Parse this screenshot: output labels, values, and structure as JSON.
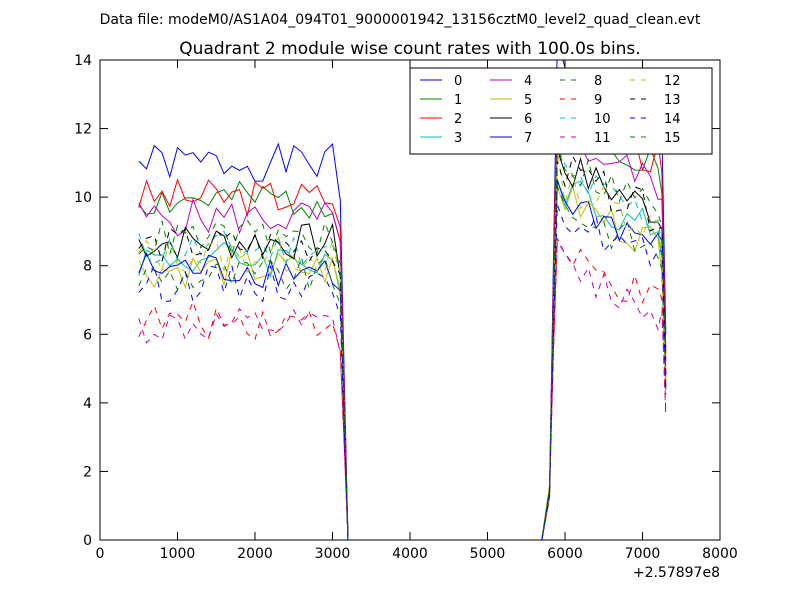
{
  "chart_data": {
    "type": "line",
    "suptitle": "Data file: modeM0/AS1A04_094T01_9000001942_13156cztM0_level2_quad_clean.evt",
    "title": "Quadrant 2 module wise count rates with 100.0s bins.",
    "xlabel": "",
    "ylabel": "",
    "x_offset_label": "+2.57897e8",
    "xlim": [
      0,
      8000
    ],
    "ylim": [
      0,
      14
    ],
    "xticks": [
      0,
      1000,
      2000,
      3000,
      4000,
      5000,
      6000,
      7000,
      8000
    ],
    "yticks": [
      0,
      2,
      4,
      6,
      8,
      10,
      12,
      14
    ],
    "xtick_labels": [
      "0",
      "1000",
      "2000",
      "3000",
      "4000",
      "5000",
      "6000",
      "7000",
      "8000"
    ],
    "ytick_labels": [
      "0",
      "2",
      "4",
      "6",
      "8",
      "10",
      "12",
      "14"
    ],
    "grid": false,
    "legend_position": "upper-right",
    "legend_columns": 4,
    "x": [
      500,
      600,
      700,
      800,
      900,
      1000,
      1100,
      1200,
      1300,
      1400,
      1500,
      1600,
      1700,
      1800,
      1900,
      2000,
      2100,
      2200,
      2300,
      2400,
      2500,
      2600,
      2700,
      2800,
      2900,
      3000,
      3100,
      3150,
      3200,
      3300,
      3500,
      4000,
      4500,
      5000,
      5500,
      5700,
      5800,
      5850,
      5900,
      6000,
      6100,
      6200,
      6300,
      6400,
      6500,
      6600,
      6700,
      6800,
      6900,
      7000,
      7100,
      7200,
      7250,
      7300
    ],
    "series": [
      {
        "name": "0",
        "color": "#0000ff",
        "dash": "solid",
        "level": 11.0,
        "seed": 1
      },
      {
        "name": "1",
        "color": "#008000",
        "dash": "solid",
        "level": 9.9,
        "seed": 2
      },
      {
        "name": "2",
        "color": "#ff0000",
        "dash": "solid",
        "level": 10.0,
        "seed": 3
      },
      {
        "name": "3",
        "color": "#00bfbf",
        "dash": "solid",
        "level": 8.2,
        "seed": 4
      },
      {
        "name": "4",
        "color": "#bf00bf",
        "dash": "solid",
        "level": 9.4,
        "seed": 5
      },
      {
        "name": "5",
        "color": "#bfbf00",
        "dash": "solid",
        "level": 7.9,
        "seed": 6
      },
      {
        "name": "6",
        "color": "#000000",
        "dash": "solid",
        "level": 8.7,
        "seed": 7
      },
      {
        "name": "7",
        "color": "#0000ff",
        "dash": "solid",
        "level": 7.9,
        "seed": 8
      },
      {
        "name": "8",
        "color": "#008000",
        "dash": "dashed",
        "level": 7.7,
        "seed": 9
      },
      {
        "name": "9",
        "color": "#ff0000",
        "dash": "dashed",
        "level": 6.4,
        "seed": 10
      },
      {
        "name": "10",
        "color": "#00bfbf",
        "dash": "dashed",
        "level": 8.5,
        "seed": 11
      },
      {
        "name": "11",
        "color": "#bf00bf",
        "dash": "dashed",
        "level": 6.2,
        "seed": 12
      },
      {
        "name": "12",
        "color": "#bfbf00",
        "dash": "dashed",
        "level": 8.3,
        "seed": 13
      },
      {
        "name": "13",
        "color": "#000000",
        "dash": "dashed",
        "level": 8.6,
        "seed": 14
      },
      {
        "name": "14",
        "color": "#0000ff",
        "dash": "dashed",
        "level": 7.5,
        "seed": 15
      },
      {
        "name": "15",
        "color": "#008000",
        "dash": "dashed",
        "level": 8.8,
        "seed": 16
      }
    ]
  }
}
